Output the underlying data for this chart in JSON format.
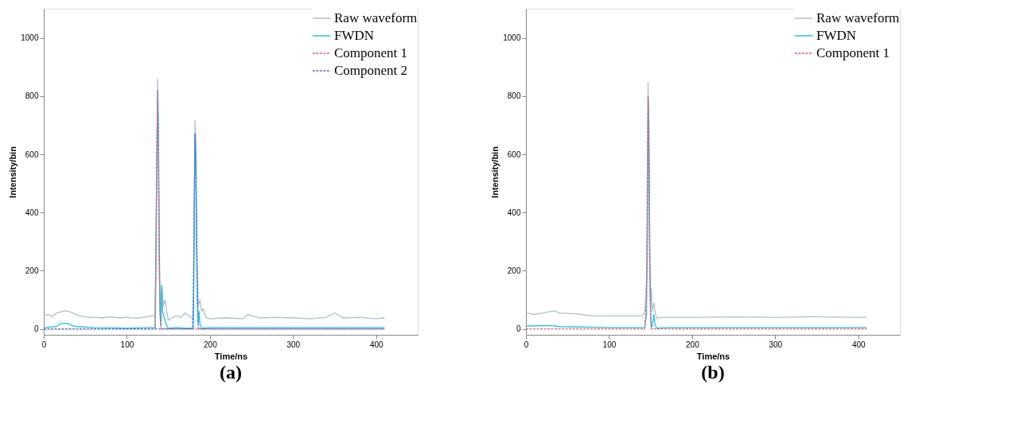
{
  "chart_data": [
    {
      "type": "line",
      "title": "(a)",
      "xlabel": "Time/ns",
      "ylabel": "Intensity/bin",
      "xlim": [
        0,
        450
      ],
      "ylim": [
        -20,
        1100
      ],
      "xticks": [
        0,
        100,
        200,
        300,
        400
      ],
      "yticks": [
        0,
        200,
        400,
        600,
        800,
        1000
      ],
      "grid": false,
      "legend": "top right",
      "marker": "none",
      "series": [
        {
          "name": "Raw waveform",
          "color": "#b0c0c8",
          "line_style": "solid",
          "x": [
            0,
            5,
            10,
            15,
            20,
            25,
            30,
            35,
            40,
            50,
            60,
            70,
            80,
            90,
            100,
            110,
            120,
            130,
            134,
            136,
            137,
            138,
            139,
            140,
            142,
            144,
            146,
            148,
            150,
            155,
            160,
            165,
            170,
            175,
            178,
            180,
            181,
            182,
            183,
            184,
            186,
            188,
            190,
            192,
            195,
            200,
            220,
            240,
            245,
            260,
            280,
            300,
            320,
            340,
            350,
            360,
            380,
            400,
            410
          ],
          "values": [
            45,
            50,
            42,
            55,
            58,
            62,
            60,
            55,
            48,
            42,
            40,
            38,
            42,
            38,
            40,
            37,
            40,
            45,
            45,
            500,
            860,
            600,
            200,
            60,
            150,
            80,
            100,
            60,
            30,
            40,
            45,
            40,
            55,
            45,
            40,
            30,
            400,
            715,
            650,
            300,
            80,
            100,
            60,
            70,
            40,
            35,
            38,
            35,
            50,
            38,
            40,
            38,
            35,
            40,
            55,
            38,
            40,
            35,
            38
          ]
        },
        {
          "name": "FWDN",
          "color": "#22c4ec",
          "line_style": "solid",
          "x": [
            0,
            15,
            20,
            25,
            30,
            35,
            40,
            60,
            100,
            130,
            134,
            135,
            137,
            138,
            139,
            140,
            141,
            142,
            143,
            145,
            147,
            149,
            160,
            170,
            180,
            181,
            182,
            183,
            184,
            185,
            186,
            187,
            188,
            190,
            200,
            250,
            300,
            350,
            410
          ],
          "values": [
            5,
            8,
            18,
            20,
            18,
            10,
            8,
            5,
            3,
            5,
            5,
            300,
            820,
            700,
            300,
            50,
            10,
            150,
            60,
            40,
            20,
            3,
            5,
            3,
            3,
            300,
            670,
            600,
            300,
            100,
            20,
            60,
            15,
            3,
            5,
            5,
            5,
            5,
            5
          ]
        },
        {
          "name": "Component 1",
          "color": "#e85a70",
          "line_style": "dashed",
          "x": [
            0,
            130,
            134,
            135,
            136,
            137,
            138,
            139,
            140,
            141,
            142,
            410
          ],
          "values": [
            0,
            0,
            0,
            200,
            600,
            820,
            600,
            250,
            50,
            5,
            0,
            0
          ]
        },
        {
          "name": "Component 2",
          "color": "#5a6ad8",
          "line_style": "dashed",
          "x": [
            0,
            179,
            180,
            181,
            182,
            183,
            184,
            185,
            186,
            187,
            410
          ],
          "values": [
            0,
            0,
            100,
            400,
            670,
            550,
            250,
            60,
            5,
            0,
            0
          ]
        }
      ]
    },
    {
      "type": "line",
      "title": "(b)",
      "xlabel": "Time/ns",
      "ylabel": "Intensity/bin",
      "xlim": [
        0,
        450
      ],
      "ylim": [
        -20,
        1100
      ],
      "xticks": [
        0,
        100,
        200,
        300,
        400
      ],
      "yticks": [
        0,
        200,
        400,
        600,
        800,
        1000
      ],
      "grid": false,
      "legend": "top right",
      "marker": "none",
      "series": [
        {
          "name": "Raw waveform",
          "color": "#b0c0c8",
          "line_style": "solid",
          "x": [
            0,
            10,
            20,
            30,
            35,
            40,
            60,
            80,
            100,
            120,
            140,
            143,
            146,
            147,
            148,
            149,
            150,
            151,
            152,
            154,
            156,
            158,
            160,
            180,
            200,
            250,
            300,
            350,
            400,
            410
          ],
          "values": [
            55,
            50,
            55,
            60,
            62,
            55,
            52,
            45,
            45,
            45,
            45,
            60,
            200,
            846,
            600,
            200,
            80,
            140,
            60,
            90,
            50,
            35,
            40,
            40,
            40,
            42,
            40,
            42,
            40,
            40
          ]
        },
        {
          "name": "FWDN",
          "color": "#22c4ec",
          "line_style": "solid",
          "x": [
            0,
            30,
            40,
            100,
            143,
            145,
            146,
            147,
            148,
            149,
            150,
            151,
            152,
            154,
            155,
            157,
            170,
            250,
            300,
            410
          ],
          "values": [
            10,
            12,
            8,
            5,
            5,
            50,
            300,
            800,
            700,
            300,
            60,
            5,
            10,
            50,
            20,
            3,
            5,
            5,
            5,
            5
          ]
        },
        {
          "name": "Component 1",
          "color": "#e85a70",
          "line_style": "dashed",
          "x": [
            0,
            143,
            145,
            146,
            147,
            148,
            149,
            150,
            151,
            410
          ],
          "values": [
            0,
            0,
            100,
            500,
            800,
            600,
            200,
            30,
            0,
            0
          ]
        }
      ]
    }
  ]
}
